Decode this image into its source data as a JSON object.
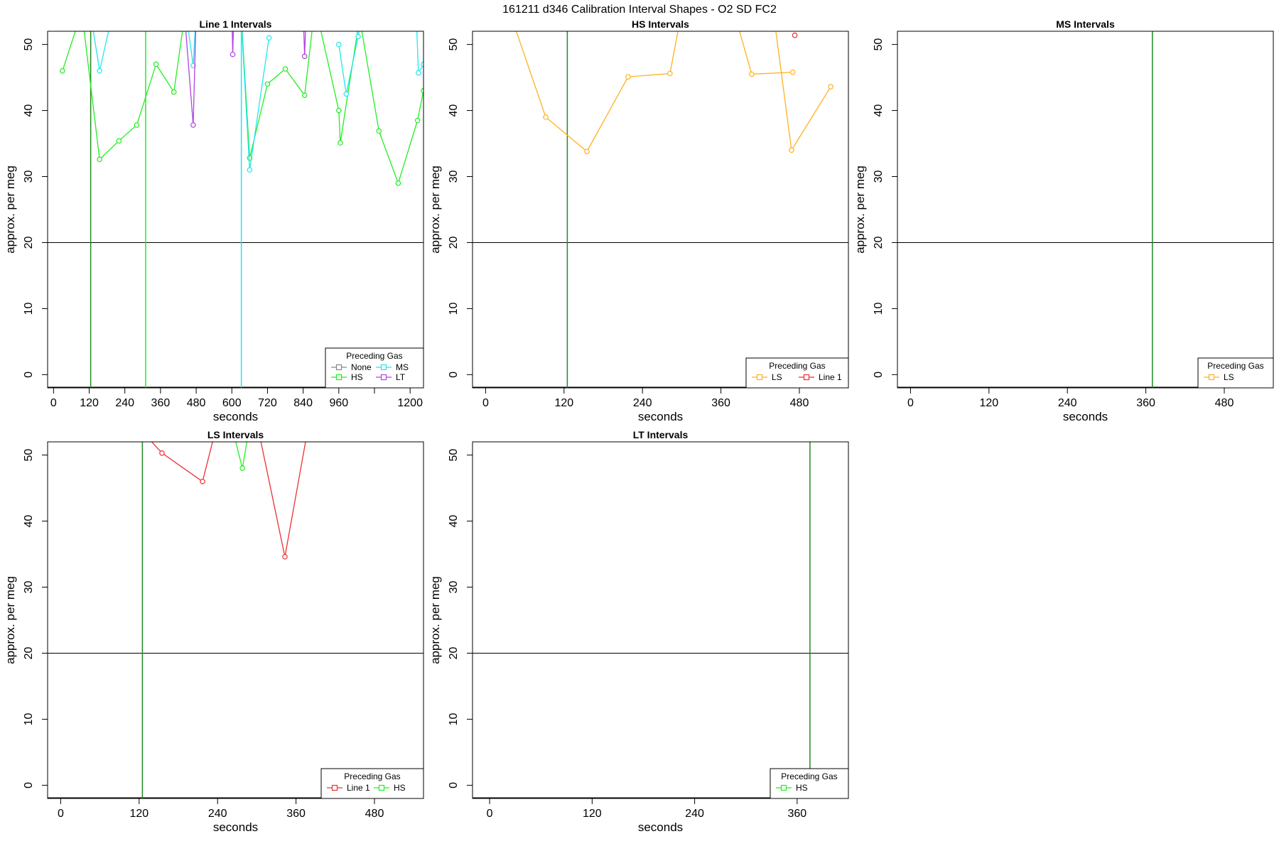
{
  "figure_title": "161211    d346    Calibration Interval Shapes - O2 SD FC2",
  "colors": {
    "None": "#888888",
    "HS": "#22ee22",
    "MS": "#22e6ee",
    "LT": "#b044e0",
    "LS": "#ffb020",
    "Line 1": "#ee3030",
    "ref_vertical": "#228b22",
    "ref_horizontal": "#000000"
  },
  "chart_data": [
    {
      "type": "line",
      "title": "Line 1 Intervals",
      "xlabel": "seconds",
      "ylabel": "approx. per meg",
      "xlim": [
        -20,
        1245
      ],
      "ylim": [
        -2,
        52
      ],
      "xticks": [
        0,
        120,
        240,
        360,
        480,
        600,
        720,
        840,
        960,
        1080,
        1200
      ],
      "xtick_labels": [
        "0",
        "120",
        "240",
        "360",
        "480",
        "600",
        "720",
        "840",
        "960",
        "",
        "1200"
      ],
      "yticks": [
        0,
        10,
        20,
        30,
        40,
        50
      ],
      "hline": 20,
      "vlines": [
        {
          "x": 125,
          "color": "ref_vertical"
        },
        {
          "x": 310,
          "color": "HS"
        },
        {
          "x": 632,
          "color": "MS"
        }
      ],
      "legend": {
        "title": "Preceding Gas",
        "entries": [
          "None",
          "MS",
          "HS",
          "LT"
        ],
        "columns": 2
      },
      "series": [
        {
          "name": "HS",
          "x": [
            30,
            95,
            155,
            220,
            280,
            345,
            405,
            440,
            632,
            660,
            720,
            780,
            845,
            880,
            960,
            965,
            1030,
            1095,
            1160,
            1225,
            1245
          ],
          "y": [
            46,
            55,
            32.6,
            35.4,
            37.8,
            47,
            42.8,
            54,
            54,
            32.8,
            44,
            46.3,
            42.3,
            56,
            40,
            35.1,
            54,
            36.9,
            29,
            38.5,
            43
          ]
        },
        {
          "name": "MS",
          "x": [
            120,
            155,
            200
          ],
          "y": [
            56,
            46,
            55
          ]
        },
        {
          "name": "MS",
          "x": [
            445,
            470,
            480
          ],
          "y": [
            55,
            46.8,
            55
          ]
        },
        {
          "name": "MS",
          "x": [
            630,
            660,
            725
          ],
          "y": [
            55,
            31,
            51
          ]
        },
        {
          "name": "MS",
          "x": [
            960,
            985,
            1025,
            1040
          ],
          "y": [
            50,
            42.5,
            51.2,
            55
          ]
        },
        {
          "name": "MS",
          "x": [
            1220,
            1228,
            1245
          ],
          "y": [
            55,
            45.7,
            47
          ]
        },
        {
          "name": "LT",
          "x": [
            440,
            470,
            480
          ],
          "y": [
            55,
            37.8,
            55
          ]
        },
        {
          "name": "LT",
          "x": [
            600,
            603,
            607
          ],
          "y": [
            55,
            48.5,
            55
          ]
        },
        {
          "name": "LT",
          "x": [
            840,
            845,
            850
          ],
          "y": [
            55,
            48.2,
            55
          ]
        }
      ]
    },
    {
      "type": "line",
      "title": "HS Intervals",
      "xlabel": "seconds",
      "ylabel": "approx. per meg",
      "xlim": [
        -20,
        555
      ],
      "ylim": [
        -2,
        52
      ],
      "xticks": [
        0,
        120,
        240,
        360,
        480
      ],
      "xtick_labels": [
        "0",
        "120",
        "240",
        "360",
        "480"
      ],
      "yticks": [
        0,
        10,
        20,
        30,
        40,
        50
      ],
      "hline": 20,
      "vlines": [
        {
          "x": 125,
          "color": "ref_vertical"
        }
      ],
      "legend": {
        "title": "Preceding Gas",
        "entries": [
          "LS",
          "Line 1"
        ],
        "columns": 2
      },
      "series": [
        {
          "name": "LS",
          "x": [
            40,
            92,
            155,
            218,
            282,
            300
          ],
          "y": [
            54,
            39,
            33.8,
            45.1,
            45.6,
            55
          ]
        },
        {
          "name": "LS",
          "x": [
            380,
            407,
            470
          ],
          "y": [
            55,
            45.5,
            45.8
          ]
        },
        {
          "name": "LS",
          "x": [
            440,
            468,
            528
          ],
          "y": [
            55,
            34,
            43.6
          ]
        },
        {
          "name": "Line 1",
          "x": [
            473
          ],
          "y": [
            51.4
          ]
        }
      ]
    },
    {
      "type": "line",
      "title": "MS Intervals",
      "xlabel": "seconds",
      "ylabel": "approx. per meg",
      "xlim": [
        -20,
        555
      ],
      "ylim": [
        -2,
        52
      ],
      "xticks": [
        0,
        120,
        240,
        360,
        480
      ],
      "xtick_labels": [
        "0",
        "120",
        "240",
        "360",
        "480"
      ],
      "yticks": [
        0,
        10,
        20,
        30,
        40,
        50
      ],
      "hline": 20,
      "vlines": [
        {
          "x": 370,
          "color": "ref_vertical"
        }
      ],
      "legend": {
        "title": "Preceding Gas",
        "entries": [
          "LS"
        ],
        "columns": 1
      },
      "series": []
    },
    {
      "type": "line",
      "title": "LS Intervals",
      "xlabel": "seconds",
      "ylabel": "approx. per meg",
      "xlim": [
        -20,
        555
      ],
      "ylim": [
        -2,
        52
      ],
      "xticks": [
        0,
        120,
        240,
        360,
        480
      ],
      "xtick_labels": [
        "0",
        "120",
        "240",
        "360",
        "480"
      ],
      "yticks": [
        0,
        10,
        20,
        30,
        40,
        50
      ],
      "hline": 20,
      "vlines": [
        {
          "x": 125,
          "color": "ref_vertical"
        }
      ],
      "legend": {
        "title": "Preceding Gas",
        "entries": [
          "Line 1",
          "HS"
        ],
        "columns": 2
      },
      "series": [
        {
          "name": "Line 1",
          "x": [
            130,
            155,
            217,
            240
          ],
          "y": [
            53,
            50.3,
            46,
            55
          ]
        },
        {
          "name": "Line 1",
          "x": [
            300,
            343,
            380
          ],
          "y": [
            55,
            34.6,
            55
          ]
        },
        {
          "name": "HS",
          "x": [
            260,
            278,
            290
          ],
          "y": [
            55,
            48,
            55
          ]
        }
      ]
    },
    {
      "type": "line",
      "title": "LT Intervals",
      "xlabel": "seconds",
      "ylabel": "approx. per meg",
      "xlim": [
        -20,
        420
      ],
      "ylim": [
        -2,
        52
      ],
      "xticks": [
        0,
        120,
        240,
        360
      ],
      "xtick_labels": [
        "0",
        "120",
        "240",
        "360"
      ],
      "yticks": [
        0,
        10,
        20,
        30,
        40,
        50
      ],
      "hline": 20,
      "vlines": [
        {
          "x": 375,
          "color": "ref_vertical"
        }
      ],
      "legend": {
        "title": "Preceding Gas",
        "entries": [
          "HS"
        ],
        "columns": 1
      },
      "series": []
    }
  ]
}
